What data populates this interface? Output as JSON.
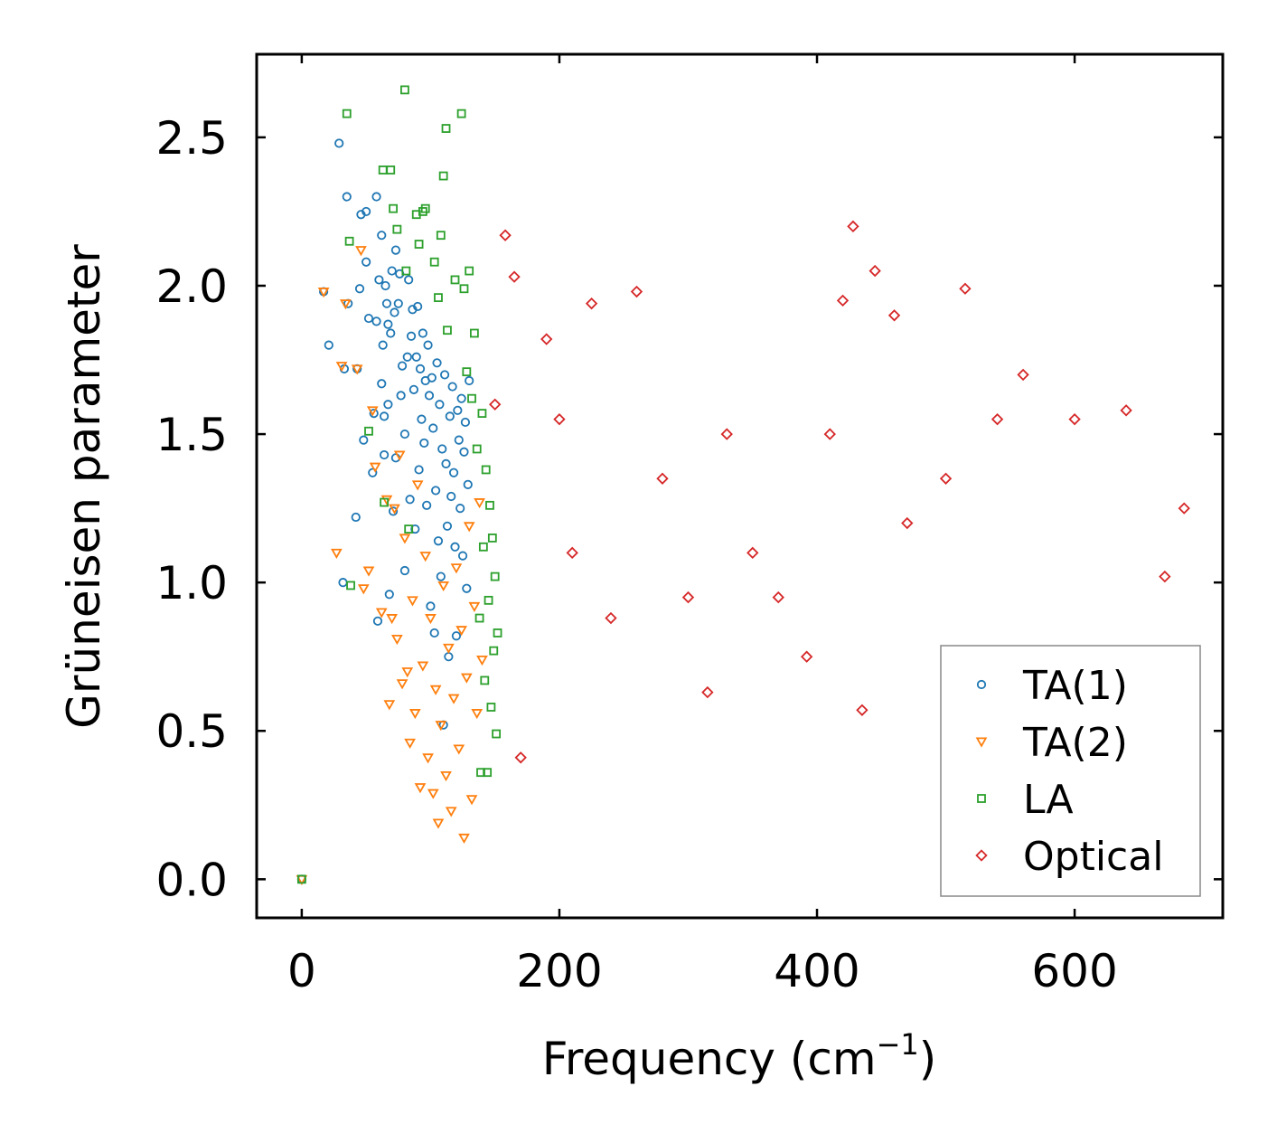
{
  "chart_data": {
    "type": "scatter",
    "title": "",
    "xlabel": "Frequency (cm",
    "xlabel_sup": "−1",
    "xlabel_close": ")",
    "ylabel": "Grüneisen parameter",
    "xlim": [
      -35,
      715
    ],
    "ylim": [
      -0.13,
      2.78
    ],
    "xticks": [
      0,
      200,
      400,
      600
    ],
    "xtick_labels": [
      "0",
      "200",
      "400",
      "600"
    ],
    "yticks": [
      0.0,
      0.5,
      1.0,
      1.5,
      2.0,
      2.5
    ],
    "ytick_labels": [
      "0.0",
      "0.5",
      "1.0",
      "1.5",
      "2.0",
      "2.5"
    ],
    "grid": false,
    "legend_position": "lower-right",
    "series": [
      {
        "name": "TA(1)",
        "marker": "circle",
        "color": "#1f77b4",
        "points": [
          [
            0,
            0
          ],
          [
            17,
            1.98
          ],
          [
            21,
            1.8
          ],
          [
            29,
            2.48
          ],
          [
            32,
            1.0
          ],
          [
            33,
            1.72
          ],
          [
            35,
            2.3
          ],
          [
            36,
            1.94
          ],
          [
            42,
            1.22
          ],
          [
            43,
            1.72
          ],
          [
            45,
            1.99
          ],
          [
            46,
            2.24
          ],
          [
            48,
            1.48
          ],
          [
            50,
            2.25
          ],
          [
            50,
            2.08
          ],
          [
            52,
            1.89
          ],
          [
            55,
            1.37
          ],
          [
            56,
            1.57
          ],
          [
            58,
            1.88
          ],
          [
            58,
            2.3
          ],
          [
            59,
            0.87
          ],
          [
            60,
            2.02
          ],
          [
            62,
            1.67
          ],
          [
            62,
            2.17
          ],
          [
            63,
            1.8
          ],
          [
            64,
            1.56
          ],
          [
            64,
            1.43
          ],
          [
            65,
            2.0
          ],
          [
            66,
            1.94
          ],
          [
            67,
            1.87
          ],
          [
            67,
            1.6
          ],
          [
            68,
            0.96
          ],
          [
            69,
            1.84
          ],
          [
            70,
            2.05
          ],
          [
            71,
            1.24
          ],
          [
            72,
            1.91
          ],
          [
            73,
            2.12
          ],
          [
            73,
            1.42
          ],
          [
            75,
            1.94
          ],
          [
            76,
            2.04
          ],
          [
            77,
            1.63
          ],
          [
            78,
            1.73
          ],
          [
            80,
            1.5
          ],
          [
            80,
            1.04
          ],
          [
            82,
            1.76
          ],
          [
            83,
            2.02
          ],
          [
            84,
            1.28
          ],
          [
            85,
            1.83
          ],
          [
            86,
            1.92
          ],
          [
            87,
            1.65
          ],
          [
            88,
            1.18
          ],
          [
            89,
            1.76
          ],
          [
            90,
            1.93
          ],
          [
            91,
            1.38
          ],
          [
            92,
            1.72
          ],
          [
            93,
            1.55
          ],
          [
            94,
            1.84
          ],
          [
            95,
            1.47
          ],
          [
            96,
            1.68
          ],
          [
            97,
            1.26
          ],
          [
            98,
            1.8
          ],
          [
            99,
            1.63
          ],
          [
            100,
            0.92
          ],
          [
            101,
            1.69
          ],
          [
            102,
            1.52
          ],
          [
            103,
            0.83
          ],
          [
            104,
            1.31
          ],
          [
            105,
            1.74
          ],
          [
            106,
            1.14
          ],
          [
            107,
            1.6
          ],
          [
            108,
            1.02
          ],
          [
            109,
            1.45
          ],
          [
            110,
            0.52
          ],
          [
            111,
            1.7
          ],
          [
            112,
            1.4
          ],
          [
            113,
            1.19
          ],
          [
            114,
            0.75
          ],
          [
            115,
            1.56
          ],
          [
            116,
            1.29
          ],
          [
            117,
            1.66
          ],
          [
            118,
            1.37
          ],
          [
            119,
            1.12
          ],
          [
            120,
            0.82
          ],
          [
            121,
            1.58
          ],
          [
            122,
            1.48
          ],
          [
            123,
            1.25
          ],
          [
            124,
            1.62
          ],
          [
            125,
            1.09
          ],
          [
            126,
            1.44
          ],
          [
            127,
            1.54
          ],
          [
            128,
            0.98
          ],
          [
            129,
            1.33
          ],
          [
            130,
            1.68
          ]
        ]
      },
      {
        "name": "TA(2)",
        "marker": "triangle-down",
        "color": "#ff7f0e",
        "points": [
          [
            0,
            0
          ],
          [
            17,
            1.98
          ],
          [
            27,
            1.1
          ],
          [
            31,
            1.73
          ],
          [
            34,
            1.94
          ],
          [
            43,
            1.72
          ],
          [
            46,
            2.12
          ],
          [
            48,
            0.98
          ],
          [
            52,
            1.04
          ],
          [
            55,
            1.58
          ],
          [
            57,
            1.39
          ],
          [
            62,
            0.9
          ],
          [
            66,
            1.28
          ],
          [
            68,
            0.59
          ],
          [
            70,
            0.88
          ],
          [
            72,
            1.25
          ],
          [
            74,
            0.81
          ],
          [
            76,
            1.43
          ],
          [
            78,
            0.66
          ],
          [
            80,
            1.15
          ],
          [
            82,
            0.7
          ],
          [
            84,
            0.46
          ],
          [
            86,
            0.94
          ],
          [
            88,
            0.56
          ],
          [
            90,
            1.33
          ],
          [
            92,
            0.31
          ],
          [
            94,
            0.72
          ],
          [
            96,
            1.09
          ],
          [
            98,
            0.41
          ],
          [
            100,
            0.88
          ],
          [
            102,
            0.29
          ],
          [
            104,
            0.64
          ],
          [
            106,
            0.19
          ],
          [
            108,
            0.52
          ],
          [
            110,
            0.99
          ],
          [
            112,
            0.35
          ],
          [
            114,
            0.78
          ],
          [
            116,
            0.23
          ],
          [
            118,
            0.61
          ],
          [
            120,
            1.05
          ],
          [
            122,
            0.44
          ],
          [
            124,
            0.84
          ],
          [
            126,
            0.14
          ],
          [
            128,
            0.68
          ],
          [
            130,
            1.19
          ],
          [
            132,
            0.27
          ],
          [
            134,
            0.92
          ],
          [
            136,
            0.56
          ],
          [
            138,
            1.27
          ],
          [
            140,
            0.74
          ]
        ]
      },
      {
        "name": "LA",
        "marker": "square",
        "color": "#2ca02c",
        "points": [
          [
            0,
            0
          ],
          [
            35,
            2.58
          ],
          [
            37,
            2.15
          ],
          [
            38,
            0.99
          ],
          [
            52,
            1.51
          ],
          [
            63,
            2.39
          ],
          [
            64,
            1.27
          ],
          [
            69,
            2.39
          ],
          [
            71,
            2.26
          ],
          [
            74,
            2.19
          ],
          [
            80,
            2.66
          ],
          [
            81,
            2.05
          ],
          [
            83,
            1.18
          ],
          [
            89,
            2.24
          ],
          [
            91,
            2.14
          ],
          [
            94,
            2.25
          ],
          [
            96,
            2.26
          ],
          [
            103,
            2.08
          ],
          [
            106,
            1.96
          ],
          [
            108,
            2.17
          ],
          [
            110,
            2.37
          ],
          [
            112,
            2.53
          ],
          [
            113,
            1.85
          ],
          [
            119,
            2.02
          ],
          [
            124,
            2.58
          ],
          [
            126,
            1.99
          ],
          [
            128,
            1.71
          ],
          [
            130,
            2.05
          ],
          [
            132,
            1.62
          ],
          [
            134,
            1.84
          ],
          [
            136,
            1.45
          ],
          [
            138,
            0.88
          ],
          [
            139,
            0.36
          ],
          [
            140,
            1.57
          ],
          [
            141,
            1.12
          ],
          [
            142,
            0.67
          ],
          [
            143,
            1.38
          ],
          [
            144,
            0.36
          ],
          [
            145,
            0.94
          ],
          [
            146,
            1.26
          ],
          [
            147,
            0.58
          ],
          [
            148,
            1.15
          ],
          [
            149,
            0.77
          ],
          [
            150,
            1.02
          ],
          [
            151,
            0.49
          ],
          [
            152,
            0.83
          ]
        ]
      },
      {
        "name": "Optical",
        "marker": "diamond",
        "color": "#d62728",
        "points": [
          [
            150,
            1.6
          ],
          [
            158,
            2.17
          ],
          [
            165,
            2.03
          ],
          [
            170,
            0.41
          ],
          [
            190,
            1.82
          ],
          [
            200,
            1.55
          ],
          [
            210,
            1.1
          ],
          [
            225,
            1.94
          ],
          [
            240,
            0.88
          ],
          [
            260,
            1.98
          ],
          [
            280,
            1.35
          ],
          [
            300,
            0.95
          ],
          [
            315,
            0.63
          ],
          [
            330,
            1.5
          ],
          [
            350,
            1.1
          ],
          [
            370,
            0.95
          ],
          [
            392,
            0.75
          ],
          [
            410,
            1.5
          ],
          [
            420,
            1.95
          ],
          [
            428,
            2.2
          ],
          [
            435,
            0.57
          ],
          [
            445,
            2.05
          ],
          [
            460,
            1.9
          ],
          [
            470,
            1.2
          ],
          [
            500,
            1.35
          ],
          [
            515,
            1.99
          ],
          [
            540,
            1.55
          ],
          [
            560,
            1.7
          ],
          [
            600,
            1.55
          ],
          [
            640,
            1.58
          ],
          [
            670,
            1.02
          ],
          [
            685,
            1.25
          ]
        ]
      }
    ]
  },
  "legend": {
    "items": [
      "TA(1)",
      "TA(2)",
      "LA",
      "Optical"
    ]
  }
}
